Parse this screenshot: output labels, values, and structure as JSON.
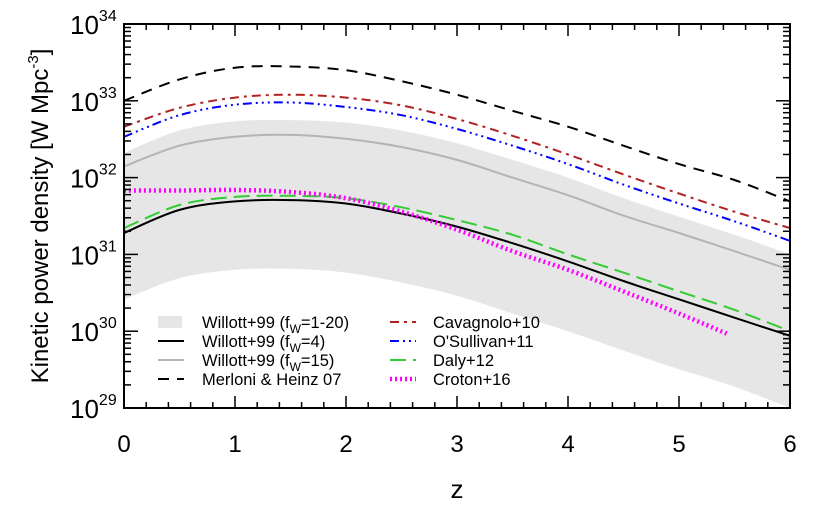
{
  "chart_data": {
    "type": "line",
    "xlabel": "z",
    "ylabel": "Kinetic power density [W Mpc",
    "ylabel_sup": "-3",
    "ylabel_end": "]",
    "xlim": [
      0,
      6
    ],
    "ylim": [
      1e+29,
      1e+34
    ],
    "yscale": "log",
    "grid": false,
    "legend_placement": "bottom-left",
    "x_ticks": [
      "0",
      "1",
      "2",
      "3",
      "4",
      "5",
      "6"
    ],
    "y_ticks": [
      {
        "base": "10",
        "exp": "29"
      },
      {
        "base": "10",
        "exp": "30"
      },
      {
        "base": "10",
        "exp": "31"
      },
      {
        "base": "10",
        "exp": "32"
      },
      {
        "base": "10",
        "exp": "33"
      },
      {
        "base": "10",
        "exp": "34"
      }
    ],
    "x": [
      0,
      0.5,
      1,
      1.5,
      2,
      2.5,
      3,
      3.5,
      4,
      4.5,
      5,
      5.5,
      6
    ],
    "band": {
      "label_pre": "Willott+99 (f",
      "label_sub": "W",
      "label_post": "=1-20)",
      "color": "#e6e6e6",
      "upper": [
        2.1e+32,
        4.1e+32,
        5.4e+32,
        5.6e+32,
        5.2e+32,
        4.1e+32,
        2.8e+32,
        1.7e+32,
        1e+32,
        5.4e+31,
        3.1e+31,
        1.8e+31,
        1e+31
      ],
      "lower": [
        2.6e+30,
        4.9e+30,
        6.3e+30,
        6.5e+30,
        5.8e+30,
        4.3e+30,
        2.9e+30,
        1.7e+30,
        1e+30,
        5.6e+29,
        3.2e+29,
        1.9e+29,
        1e+29
      ]
    },
    "series": [
      {
        "name_pre": "Willott+99 (f",
        "name_sub": "W",
        "name_post": "=4)",
        "color": "#000000",
        "style": "solid",
        "values": [
          1.9e+31,
          3.8e+31,
          4.9e+31,
          5.1e+31,
          4.6e+31,
          3.4e+31,
          2.3e+31,
          1.4e+31,
          8.1e+30,
          4.5e+30,
          2.6e+30,
          1.5e+30,
          8.7e+29
        ]
      },
      {
        "name_pre": "Willott+99 (f",
        "name_sub": "W",
        "name_post": "=15)",
        "color": "#b4b4b4",
        "style": "solid",
        "values": [
          1.4e+32,
          2.6e+32,
          3.4e+32,
          3.6e+32,
          3.2e+32,
          2.5e+32,
          1.7e+32,
          1e+32,
          5.9e+31,
          3.2e+31,
          1.9e+31,
          1.1e+31,
          6.3e+30
        ]
      },
      {
        "name_pre": "Merloni & Heinz 07",
        "name_sub": "",
        "name_post": "",
        "color": "#000000",
        "style": "dashed",
        "values": [
          1e+33,
          1.9e+33,
          2.7e+33,
          2.8e+33,
          2.5e+33,
          1.8e+33,
          1.2e+33,
          7.4e+32,
          4.6e+32,
          2.6e+32,
          1.5e+32,
          9.3e+31,
          4.9e+31
        ]
      },
      {
        "name_pre": "Cavagnolo+10",
        "name_sub": "",
        "name_post": "",
        "color": "#b22222",
        "style": "dash-dot",
        "values": [
          4.6e+32,
          8.1e+32,
          1.1e+33,
          1.2e+33,
          1.1e+33,
          8.7e+32,
          5.8e+32,
          3.5e+32,
          2e+32,
          1.1e+32,
          6.2e+31,
          3.6e+31,
          2.2e+31
        ]
      },
      {
        "name_pre": "O'Sullivan+11",
        "name_sub": "",
        "name_post": "",
        "color": "#0000ff",
        "style": "dash-dot-dot-dot",
        "values": [
          3.4e+32,
          6.5e+32,
          8.9e+32,
          9.5e+32,
          8.3e+32,
          6.5e+32,
          4.3e+32,
          2.6e+32,
          1.5e+32,
          8.1e+31,
          4.6e+31,
          2.7e+31,
          1.5e+31
        ]
      },
      {
        "name_pre": "Daly+12",
        "name_sub": "",
        "name_post": "",
        "color": "#33cc33",
        "style": "long-dashed",
        "values": [
          2.2e+31,
          4.4e+31,
          5.6e+31,
          5.8e+31,
          5.4e+31,
          4.1e+31,
          2.8e+31,
          1.8e+31,
          1e+31,
          5.8e+30,
          3.3e+30,
          1.9e+30,
          1e+30
        ]
      },
      {
        "name_pre": "Croton+16",
        "name_sub": "",
        "name_post": "",
        "color": "#ff00ff",
        "style": "dotted",
        "x": [
          0,
          0.5,
          1,
          1.5,
          2,
          2.5,
          3,
          3.5,
          4,
          4.5,
          5,
          5.43
        ],
        "values": [
          6.8e+31,
          6.8e+31,
          6.9e+31,
          6.5e+31,
          5.4e+31,
          3.6e+31,
          2.1e+31,
          1.1e+31,
          6.3e+30,
          3.3e+30,
          1.7e+30,
          9.3e+29
        ]
      }
    ]
  }
}
